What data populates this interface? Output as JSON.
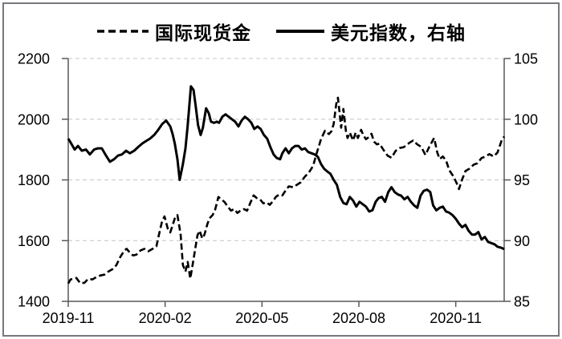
{
  "legend": {
    "gold_label": "国际现货金",
    "usd_label": "美元指数，右轴"
  },
  "chart_data": {
    "type": "line",
    "title": "",
    "legend_position": "top",
    "grid": "horizontal-dashed",
    "colors": {
      "series": "#000000",
      "axis": "#595959",
      "gridline": "#c4c4c4",
      "frame": "#75787c",
      "background": "#ffffff",
      "text": "#000000"
    },
    "x_axis": {
      "tick_labels": [
        "2019-11",
        "2020-02",
        "2020-05",
        "2020-08",
        "2020-11"
      ],
      "tick_positions_months": [
        0,
        3,
        6,
        9,
        12
      ],
      "range_months": [
        0,
        13.5
      ]
    },
    "left_axis": {
      "series": "国际现货金",
      "ticks": [
        2200,
        2000,
        1800,
        1600,
        1400
      ],
      "range": [
        1400,
        2200
      ]
    },
    "right_axis": {
      "series": "美元指数",
      "ticks": [
        105,
        100,
        95,
        90,
        85
      ],
      "range": [
        85,
        105
      ]
    },
    "series": [
      {
        "name": "国际现货金",
        "axis": "left",
        "line_style": "dashed",
        "points": [
          [
            0,
            1459
          ],
          [
            0.07,
            1472
          ],
          [
            0.25,
            1477
          ],
          [
            0.37,
            1460
          ],
          [
            0.5,
            1461
          ],
          [
            0.62,
            1474
          ],
          [
            0.75,
            1472
          ],
          [
            0.87,
            1480
          ],
          [
            0.99,
            1485
          ],
          [
            1.12,
            1488
          ],
          [
            1.24,
            1498
          ],
          [
            1.37,
            1506
          ],
          [
            1.49,
            1519
          ],
          [
            1.61,
            1546
          ],
          [
            1.74,
            1568
          ],
          [
            1.81,
            1573
          ],
          [
            1.91,
            1560
          ],
          [
            2.01,
            1551
          ],
          [
            2.11,
            1554
          ],
          [
            2.24,
            1568
          ],
          [
            2.36,
            1573
          ],
          [
            2.48,
            1565
          ],
          [
            2.61,
            1573
          ],
          [
            2.73,
            1581
          ],
          [
            2.81,
            1620
          ],
          [
            2.91,
            1665
          ],
          [
            2.98,
            1680
          ],
          [
            3.08,
            1640
          ],
          [
            3.16,
            1627
          ],
          [
            3.23,
            1650
          ],
          [
            3.3,
            1673
          ],
          [
            3.38,
            1684
          ],
          [
            3.48,
            1620
          ],
          [
            3.55,
            1520
          ],
          [
            3.63,
            1498
          ],
          [
            3.7,
            1530
          ],
          [
            3.78,
            1475
          ],
          [
            3.85,
            1520
          ],
          [
            3.93,
            1572
          ],
          [
            4.0,
            1617
          ],
          [
            4.07,
            1633
          ],
          [
            4.15,
            1607
          ],
          [
            4.22,
            1620
          ],
          [
            4.3,
            1652
          ],
          [
            4.37,
            1673
          ],
          [
            4.47,
            1684
          ],
          [
            4.55,
            1702
          ],
          [
            4.65,
            1744
          ],
          [
            4.75,
            1735
          ],
          [
            4.84,
            1727
          ],
          [
            4.94,
            1712
          ],
          [
            5.04,
            1699
          ],
          [
            5.14,
            1704
          ],
          [
            5.24,
            1691
          ],
          [
            5.34,
            1700
          ],
          [
            5.44,
            1704
          ],
          [
            5.54,
            1699
          ],
          [
            5.64,
            1725
          ],
          [
            5.74,
            1749
          ],
          [
            5.84,
            1740
          ],
          [
            5.94,
            1736
          ],
          [
            6.04,
            1723
          ],
          [
            6.14,
            1726
          ],
          [
            6.24,
            1718
          ],
          [
            6.34,
            1730
          ],
          [
            6.43,
            1744
          ],
          [
            6.53,
            1752
          ],
          [
            6.63,
            1749
          ],
          [
            6.73,
            1765
          ],
          [
            6.83,
            1779
          ],
          [
            6.96,
            1776
          ],
          [
            7.08,
            1784
          ],
          [
            7.2,
            1792
          ],
          [
            7.33,
            1811
          ],
          [
            7.45,
            1824
          ],
          [
            7.58,
            1846
          ],
          [
            7.7,
            1890
          ],
          [
            7.83,
            1935
          ],
          [
            7.95,
            1962
          ],
          [
            8.07,
            1951
          ],
          [
            8.15,
            1960
          ],
          [
            8.22,
            1984
          ],
          [
            8.3,
            2050
          ],
          [
            8.35,
            2071
          ],
          [
            8.4,
            2023
          ],
          [
            8.45,
            1972
          ],
          [
            8.52,
            2034
          ],
          [
            8.6,
            1960
          ],
          [
            8.65,
            1938
          ],
          [
            8.72,
            1956
          ],
          [
            8.82,
            1930
          ],
          [
            8.9,
            1956
          ],
          [
            8.97,
            1938
          ],
          [
            9.07,
            1965
          ],
          [
            9.14,
            1947
          ],
          [
            9.22,
            1934
          ],
          [
            9.32,
            1942
          ],
          [
            9.39,
            1952
          ],
          [
            9.47,
            1926
          ],
          [
            9.56,
            1917
          ],
          [
            9.64,
            1920
          ],
          [
            9.76,
            1899
          ],
          [
            9.89,
            1880
          ],
          [
            10.01,
            1873
          ],
          [
            10.14,
            1896
          ],
          [
            10.26,
            1905
          ],
          [
            10.39,
            1908
          ],
          [
            10.51,
            1917
          ],
          [
            10.56,
            1922
          ],
          [
            10.68,
            1930
          ],
          [
            10.81,
            1917
          ],
          [
            10.93,
            1909
          ],
          [
            11.06,
            1882
          ],
          [
            11.18,
            1909
          ],
          [
            11.33,
            1938
          ],
          [
            11.43,
            1890
          ],
          [
            11.5,
            1869
          ],
          [
            11.6,
            1877
          ],
          [
            11.7,
            1864
          ],
          [
            11.8,
            1832
          ],
          [
            11.93,
            1811
          ],
          [
            12.05,
            1784
          ],
          [
            12.1,
            1770
          ],
          [
            12.2,
            1802
          ],
          [
            12.3,
            1829
          ],
          [
            12.42,
            1837
          ],
          [
            12.55,
            1850
          ],
          [
            12.67,
            1855
          ],
          [
            12.8,
            1872
          ],
          [
            12.92,
            1877
          ],
          [
            13.04,
            1885
          ],
          [
            13.17,
            1877
          ],
          [
            13.29,
            1890
          ],
          [
            13.42,
            1930
          ],
          [
            13.5,
            1943
          ]
        ]
      },
      {
        "name": "美元指数，右轴",
        "axis": "right",
        "line_style": "solid",
        "points": [
          [
            0,
            98.4
          ],
          [
            0.07,
            98.1
          ],
          [
            0.2,
            97.5
          ],
          [
            0.3,
            97.8
          ],
          [
            0.42,
            97.4
          ],
          [
            0.55,
            97.5
          ],
          [
            0.67,
            97.1
          ],
          [
            0.8,
            97.5
          ],
          [
            0.92,
            97.6
          ],
          [
            1.04,
            97.6
          ],
          [
            1.17,
            97.0
          ],
          [
            1.29,
            96.5
          ],
          [
            1.42,
            96.7
          ],
          [
            1.54,
            97.0
          ],
          [
            1.66,
            97.1
          ],
          [
            1.79,
            97.4
          ],
          [
            1.91,
            97.2
          ],
          [
            2.04,
            97.4
          ],
          [
            2.16,
            97.7
          ],
          [
            2.29,
            98.0
          ],
          [
            2.41,
            98.2
          ],
          [
            2.53,
            98.4
          ],
          [
            2.66,
            98.7
          ],
          [
            2.78,
            99.1
          ],
          [
            2.91,
            99.6
          ],
          [
            3.03,
            99.9
          ],
          [
            3.16,
            99.4
          ],
          [
            3.23,
            98.8
          ],
          [
            3.3,
            98.0
          ],
          [
            3.38,
            96.7
          ],
          [
            3.45,
            95.0
          ],
          [
            3.55,
            96.3
          ],
          [
            3.63,
            97.6
          ],
          [
            3.7,
            99.5
          ],
          [
            3.8,
            102.7
          ],
          [
            3.88,
            102.4
          ],
          [
            3.95,
            101.0
          ],
          [
            4.02,
            99.5
          ],
          [
            4.1,
            98.7
          ],
          [
            4.17,
            99.3
          ],
          [
            4.27,
            100.9
          ],
          [
            4.35,
            100.5
          ],
          [
            4.42,
            99.8
          ],
          [
            4.52,
            99.7
          ],
          [
            4.6,
            99.8
          ],
          [
            4.67,
            99.7
          ],
          [
            4.77,
            100.2
          ],
          [
            4.87,
            100.4
          ],
          [
            4.97,
            100.2
          ],
          [
            5.07,
            100.0
          ],
          [
            5.17,
            99.8
          ],
          [
            5.27,
            99.4
          ],
          [
            5.37,
            99.9
          ],
          [
            5.47,
            100.2
          ],
          [
            5.57,
            100.0
          ],
          [
            5.67,
            99.7
          ],
          [
            5.76,
            99.2
          ],
          [
            5.86,
            99.4
          ],
          [
            5.96,
            99.2
          ],
          [
            6.06,
            98.7
          ],
          [
            6.16,
            98.4
          ],
          [
            6.26,
            97.7
          ],
          [
            6.36,
            97.1
          ],
          [
            6.46,
            96.8
          ],
          [
            6.56,
            96.7
          ],
          [
            6.63,
            97.2
          ],
          [
            6.73,
            97.6
          ],
          [
            6.83,
            97.2
          ],
          [
            6.93,
            97.6
          ],
          [
            7.03,
            97.8
          ],
          [
            7.13,
            97.8
          ],
          [
            7.23,
            97.5
          ],
          [
            7.33,
            97.6
          ],
          [
            7.43,
            97.3
          ],
          [
            7.53,
            97.2
          ],
          [
            7.63,
            97.1
          ],
          [
            7.73,
            96.9
          ],
          [
            7.83,
            96.3
          ],
          [
            7.93,
            95.9
          ],
          [
            8.02,
            95.7
          ],
          [
            8.12,
            95.5
          ],
          [
            8.22,
            95.0
          ],
          [
            8.32,
            94.6
          ],
          [
            8.42,
            93.6
          ],
          [
            8.52,
            93.1
          ],
          [
            8.62,
            93.0
          ],
          [
            8.72,
            93.6
          ],
          [
            8.82,
            93.3
          ],
          [
            8.92,
            92.8
          ],
          [
            9.02,
            93.2
          ],
          [
            9.12,
            93.0
          ],
          [
            9.22,
            92.8
          ],
          [
            9.32,
            92.4
          ],
          [
            9.42,
            92.5
          ],
          [
            9.52,
            93.2
          ],
          [
            9.61,
            93.5
          ],
          [
            9.71,
            93.6
          ],
          [
            9.81,
            93.2
          ],
          [
            9.91,
            94.0
          ],
          [
            10.01,
            94.4
          ],
          [
            10.11,
            94.0
          ],
          [
            10.21,
            93.8
          ],
          [
            10.31,
            93.7
          ],
          [
            10.41,
            93.4
          ],
          [
            10.51,
            93.6
          ],
          [
            10.61,
            93.2
          ],
          [
            10.71,
            92.9
          ],
          [
            10.81,
            92.7
          ],
          [
            10.91,
            93.7
          ],
          [
            11.01,
            94.1
          ],
          [
            11.11,
            94.2
          ],
          [
            11.21,
            94.0
          ],
          [
            11.3,
            92.9
          ],
          [
            11.4,
            92.5
          ],
          [
            11.5,
            92.7
          ],
          [
            11.6,
            92.8
          ],
          [
            11.7,
            92.4
          ],
          [
            11.8,
            92.3
          ],
          [
            11.9,
            92.1
          ],
          [
            12.0,
            91.8
          ],
          [
            12.1,
            91.4
          ],
          [
            12.2,
            91.1
          ],
          [
            12.3,
            91.3
          ],
          [
            12.4,
            90.8
          ],
          [
            12.5,
            90.5
          ],
          [
            12.6,
            90.5
          ],
          [
            12.7,
            90.7
          ],
          [
            12.8,
            90.1
          ],
          [
            12.9,
            90.3
          ],
          [
            13.0,
            89.9
          ],
          [
            13.1,
            89.8
          ],
          [
            13.2,
            89.7
          ],
          [
            13.29,
            89.5
          ],
          [
            13.42,
            89.4
          ],
          [
            13.5,
            89.3
          ]
        ]
      }
    ]
  }
}
